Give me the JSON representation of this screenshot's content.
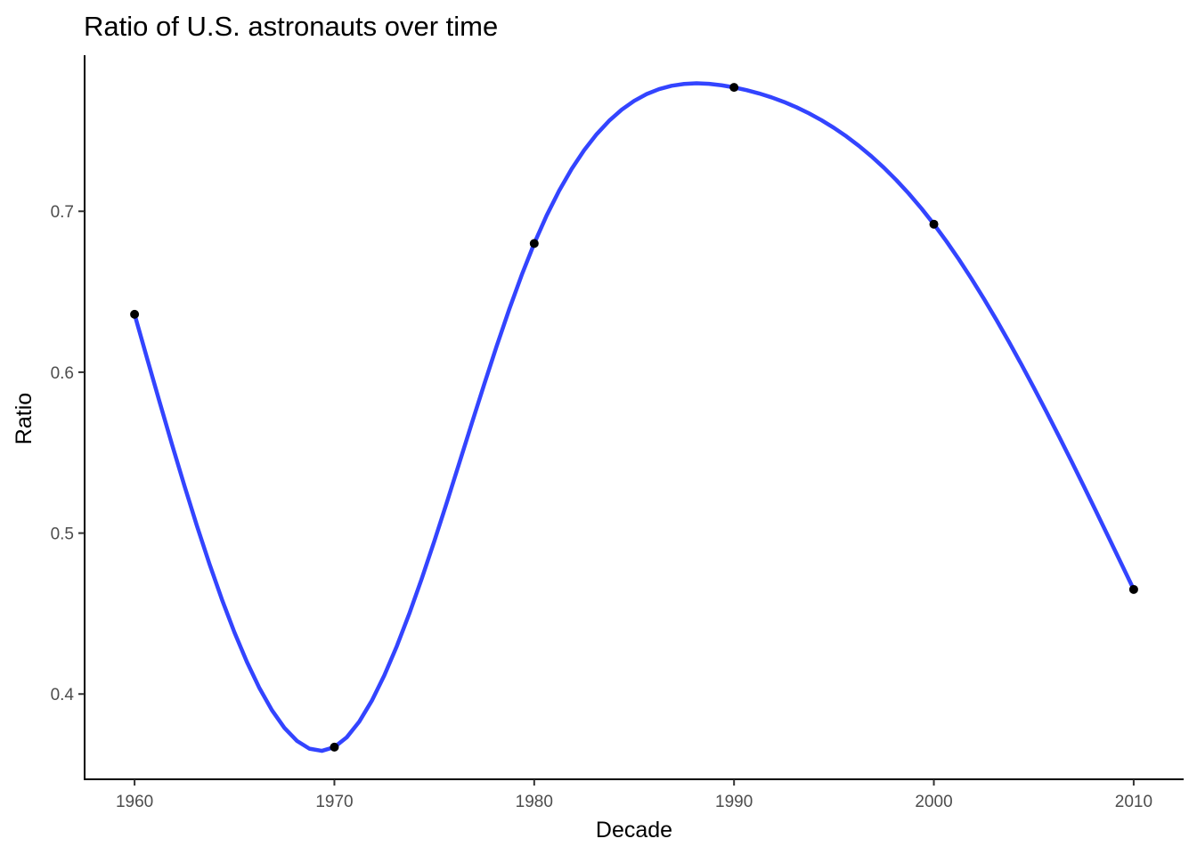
{
  "chart_data": {
    "type": "scatter",
    "title": "Ratio of U.S. astronauts over time",
    "xlabel": "Decade",
    "ylabel": "Ratio",
    "x": [
      1960,
      1970,
      1980,
      1990,
      2000,
      2010
    ],
    "y": [
      0.636,
      0.367,
      0.68,
      0.777,
      0.692,
      0.465
    ],
    "xlim": [
      1957.5,
      2012.5
    ],
    "ylim": [
      0.347,
      0.797
    ],
    "xticks": [
      "1960",
      "1970",
      "1980",
      "1990",
      "2000",
      "2010"
    ],
    "yticks": [
      "0.4",
      "0.5",
      "0.6",
      "0.7"
    ],
    "smooth_line_color": "#3344ff",
    "point_color": "#000000",
    "grid": false,
    "legend": "none"
  }
}
